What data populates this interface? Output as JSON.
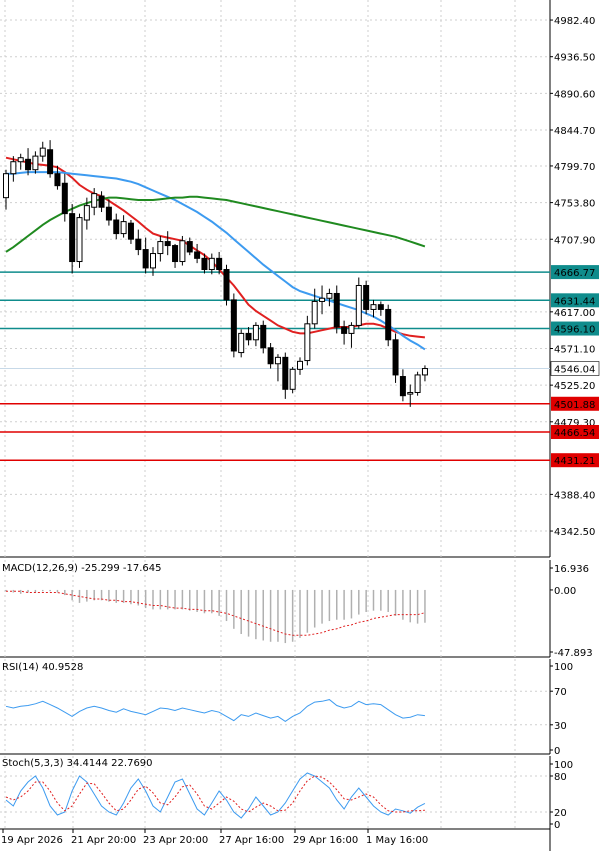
{
  "chart_data": [
    {
      "type": "candlestick",
      "ylim": [
        4310,
        5005
      ],
      "grid": true,
      "y_ticks": [
        "4982.40",
        "4936.50",
        "4890.60",
        "4844.70",
        "4799.70",
        "4753.80",
        "4707.90",
        "4617.00",
        "4571.10",
        "4525.20",
        "4479.30",
        "4388.40",
        "4342.50"
      ],
      "x_labels": [
        "19 Apr 2026",
        "21 Apr 20:00",
        "23 Apr 20:00",
        "27 Apr 16:00",
        "29 Apr 16:00",
        "1 May 16:00"
      ],
      "last_price": 4546.04,
      "last_price_label": "4546.04",
      "level_lines": [
        {
          "value": 4666.77,
          "label": "4666.77",
          "color": "#0f8c8c"
        },
        {
          "value": 4631.44,
          "label": "4631.44",
          "color": "#0f8c8c"
        },
        {
          "value": 4596.1,
          "label": "4596.10",
          "color": "#0f8c8c"
        },
        {
          "value": 4501.88,
          "label": "4501.88",
          "color": "#e00000"
        },
        {
          "value": 4466.54,
          "label": "4466.54",
          "color": "#e00000"
        },
        {
          "value": 4431.21,
          "label": "4431.21",
          "color": "#e00000"
        }
      ],
      "candles": [
        [
          4760,
          4795,
          4745,
          4790
        ],
        [
          4790,
          4812,
          4780,
          4805
        ],
        [
          4805,
          4815,
          4795,
          4810
        ],
        [
          4808,
          4822,
          4788,
          4795
        ],
        [
          4795,
          4818,
          4790,
          4812
        ],
        [
          4812,
          4830,
          4805,
          4822
        ],
        [
          4820,
          4832,
          4785,
          4790
        ],
        [
          4790,
          4800,
          4770,
          4775
        ],
        [
          4778,
          4790,
          4730,
          4740
        ],
        [
          4740,
          4752,
          4665,
          4680
        ],
        [
          4680,
          4740,
          4672,
          4735
        ],
        [
          4732,
          4760,
          4720,
          4750
        ],
        [
          4748,
          4772,
          4738,
          4765
        ],
        [
          4762,
          4768,
          4742,
          4748
        ],
        [
          4748,
          4758,
          4725,
          4732
        ],
        [
          4732,
          4740,
          4708,
          4715
        ],
        [
          4715,
          4738,
          4710,
          4730
        ],
        [
          4728,
          4732,
          4702,
          4708
        ],
        [
          4708,
          4720,
          4688,
          4695
        ],
        [
          4695,
          4710,
          4665,
          4672
        ],
        [
          4672,
          4698,
          4662,
          4690
        ],
        [
          4690,
          4712,
          4680,
          4705
        ],
        [
          4705,
          4718,
          4688,
          4700
        ],
        [
          4700,
          4702,
          4672,
          4680
        ],
        [
          4680,
          4712,
          4675,
          4706
        ],
        [
          4705,
          4710,
          4688,
          4692
        ],
        [
          4692,
          4702,
          4678,
          4684
        ],
        [
          4684,
          4690,
          4665,
          4670
        ],
        [
          4670,
          4690,
          4664,
          4684
        ],
        [
          4684,
          4692,
          4664,
          4670
        ],
        [
          4670,
          4676,
          4625,
          4632
        ],
        [
          4632,
          4640,
          4560,
          4568
        ],
        [
          4566,
          4595,
          4560,
          4590
        ],
        [
          4590,
          4598,
          4575,
          4582
        ],
        [
          4582,
          4604,
          4574,
          4600
        ],
        [
          4600,
          4606,
          4565,
          4572
        ],
        [
          4572,
          4578,
          4546,
          4552
        ],
        [
          4552,
          4564,
          4530,
          4560
        ],
        [
          4560,
          4566,
          4508,
          4520
        ],
        [
          4520,
          4548,
          4515,
          4545
        ],
        [
          4545,
          4560,
          4538,
          4555
        ],
        [
          4556,
          4612,
          4550,
          4602
        ],
        [
          4602,
          4646,
          4596,
          4630
        ],
        [
          4630,
          4650,
          4614,
          4634
        ],
        [
          4634,
          4646,
          4624,
          4640
        ],
        [
          4640,
          4650,
          4590,
          4598
        ],
        [
          4598,
          4606,
          4576,
          4590
        ],
        [
          4590,
          4604,
          4572,
          4600
        ],
        [
          4600,
          4660,
          4596,
          4650
        ],
        [
          4650,
          4656,
          4614,
          4620
        ],
        [
          4620,
          4632,
          4610,
          4626
        ],
        [
          4626,
          4630,
          4612,
          4620
        ],
        [
          4620,
          4626,
          4574,
          4582
        ],
        [
          4582,
          4590,
          4528,
          4538
        ],
        [
          4536,
          4545,
          4505,
          4512
        ],
        [
          4514,
          4526,
          4498,
          4516
        ],
        [
          4516,
          4542,
          4512,
          4538
        ],
        [
          4538,
          4550,
          4530,
          4546
        ]
      ],
      "series": [
        {
          "line": "ma_red",
          "color": "#e02020",
          "values": [
            4810,
            4808,
            4806,
            4804,
            4802,
            4801,
            4800,
            4798,
            4792,
            4785,
            4776,
            4770,
            4765,
            4762,
            4756,
            4750,
            4744,
            4737,
            4730,
            4722,
            4715,
            4712,
            4710,
            4708,
            4706,
            4700,
            4694,
            4688,
            4680,
            4670,
            4660,
            4650,
            4638,
            4626,
            4618,
            4612,
            4606,
            4600,
            4596,
            4592,
            4590,
            4590,
            4592,
            4594,
            4596,
            4598,
            4598,
            4598,
            4600,
            4602,
            4602,
            4600,
            4596,
            4592,
            4589,
            4587,
            4586,
            4585
          ]
        },
        {
          "line": "ma_blue",
          "color": "#3d9bf0",
          "values": [
            4790,
            4790,
            4791,
            4792,
            4792,
            4792,
            4792,
            4792,
            4791,
            4790,
            4789,
            4788,
            4787,
            4786,
            4785,
            4784,
            4782,
            4780,
            4777,
            4773,
            4769,
            4765,
            4761,
            4757,
            4752,
            4747,
            4742,
            4736,
            4730,
            4723,
            4716,
            4708,
            4700,
            4692,
            4684,
            4676,
            4669,
            4662,
            4655,
            4648,
            4643,
            4640,
            4637,
            4634,
            4631,
            4628,
            4625,
            4622,
            4619,
            4615,
            4611,
            4606,
            4600,
            4594,
            4587,
            4581,
            4576,
            4570
          ]
        },
        {
          "line": "ma_green",
          "color": "#208a20",
          "values": [
            4692,
            4698,
            4705,
            4712,
            4719,
            4726,
            4732,
            4737,
            4742,
            4746,
            4750,
            4753,
            4756,
            4758,
            4760,
            4760,
            4759,
            4758,
            4757,
            4757,
            4757,
            4758,
            4759,
            4760,
            4760,
            4761,
            4761,
            4760,
            4759,
            4758,
            4757,
            4755,
            4753,
            4751,
            4749,
            4747,
            4745,
            4743,
            4741,
            4739,
            4737,
            4735,
            4733,
            4731,
            4729,
            4727,
            4725,
            4723,
            4721,
            4719,
            4717,
            4715,
            4713,
            4711,
            4708,
            4705,
            4702,
            4699
          ]
        }
      ]
    },
    {
      "type": "histogram",
      "title": "MACD(12,26,9) -25.299 -17.645",
      "ylim": [
        -47.893,
        16.936
      ],
      "y_ticks": [
        "16.936",
        "0.00",
        "-47.893"
      ],
      "signal_color": "#e02020",
      "hist": [
        -1,
        -2,
        -3,
        -2,
        -2,
        -1,
        -1,
        -2,
        -4,
        -8,
        -10,
        -9,
        -8,
        -8,
        -9,
        -10,
        -10,
        -11,
        -12,
        -14,
        -15,
        -15,
        -15,
        -15,
        -15,
        -16,
        -17,
        -18,
        -18,
        -20,
        -24,
        -30,
        -34,
        -36,
        -38,
        -39,
        -40,
        -40,
        -41,
        -40,
        -37,
        -33,
        -29,
        -26,
        -24,
        -23,
        -23,
        -22,
        -19,
        -17,
        -16,
        -16,
        -17,
        -20,
        -23,
        -25,
        -26,
        -25.3
      ],
      "signal": [
        -1,
        -1,
        -1,
        -2,
        -2,
        -2,
        -2,
        -2,
        -3,
        -4,
        -5,
        -6,
        -7,
        -7,
        -8,
        -8,
        -9,
        -9,
        -10,
        -11,
        -12,
        -12,
        -13,
        -14,
        -14,
        -15,
        -15,
        -16,
        -16,
        -17,
        -18,
        -20,
        -22,
        -24,
        -26,
        -28,
        -30,
        -32,
        -34,
        -35,
        -35,
        -35,
        -34,
        -33,
        -31,
        -30,
        -28,
        -27,
        -25,
        -24,
        -22,
        -21,
        -20,
        -19,
        -19,
        -19,
        -19,
        -17.6
      ]
    },
    {
      "type": "line",
      "title": "RSI(14) 40.9528",
      "ylim": [
        0,
        100
      ],
      "y_ticks": [
        "100",
        "70",
        "30",
        "0"
      ],
      "color": "#3d9bf0",
      "values": [
        52,
        50,
        52,
        53,
        55,
        58,
        54,
        50,
        45,
        40,
        46,
        50,
        52,
        50,
        47,
        45,
        49,
        46,
        44,
        42,
        46,
        50,
        49,
        47,
        50,
        48,
        46,
        44,
        47,
        45,
        40,
        35,
        42,
        40,
        44,
        41,
        38,
        40,
        34,
        40,
        44,
        52,
        57,
        58,
        60,
        53,
        50,
        52,
        58,
        54,
        55,
        54,
        48,
        42,
        38,
        39,
        42,
        41
      ]
    },
    {
      "type": "line",
      "title": "Stoch(5,3,3) 34.4144 22.7690",
      "ylim": [
        0,
        100
      ],
      "y_ticks": [
        "100",
        "80",
        "20",
        "0"
      ],
      "k_color": "#3d9bf0",
      "d_color": "#e02020",
      "k": [
        40,
        30,
        55,
        70,
        80,
        60,
        30,
        15,
        20,
        55,
        80,
        70,
        50,
        30,
        20,
        15,
        35,
        60,
        75,
        55,
        30,
        20,
        45,
        70,
        75,
        50,
        25,
        15,
        35,
        55,
        40,
        20,
        10,
        25,
        45,
        30,
        15,
        20,
        35,
        55,
        75,
        85,
        80,
        70,
        60,
        40,
        25,
        45,
        60,
        45,
        30,
        20,
        15,
        25,
        22,
        18,
        28,
        34.4
      ],
      "d": [
        45,
        40,
        45,
        55,
        70,
        70,
        55,
        35,
        22,
        30,
        50,
        68,
        67,
        52,
        35,
        22,
        25,
        40,
        58,
        63,
        52,
        35,
        32,
        45,
        62,
        65,
        50,
        30,
        25,
        35,
        45,
        38,
        25,
        20,
        28,
        35,
        30,
        22,
        23,
        35,
        55,
        72,
        80,
        78,
        70,
        57,
        42,
        40,
        45,
        50,
        45,
        32,
        22,
        20,
        20,
        22,
        22,
        22.8
      ]
    }
  ]
}
